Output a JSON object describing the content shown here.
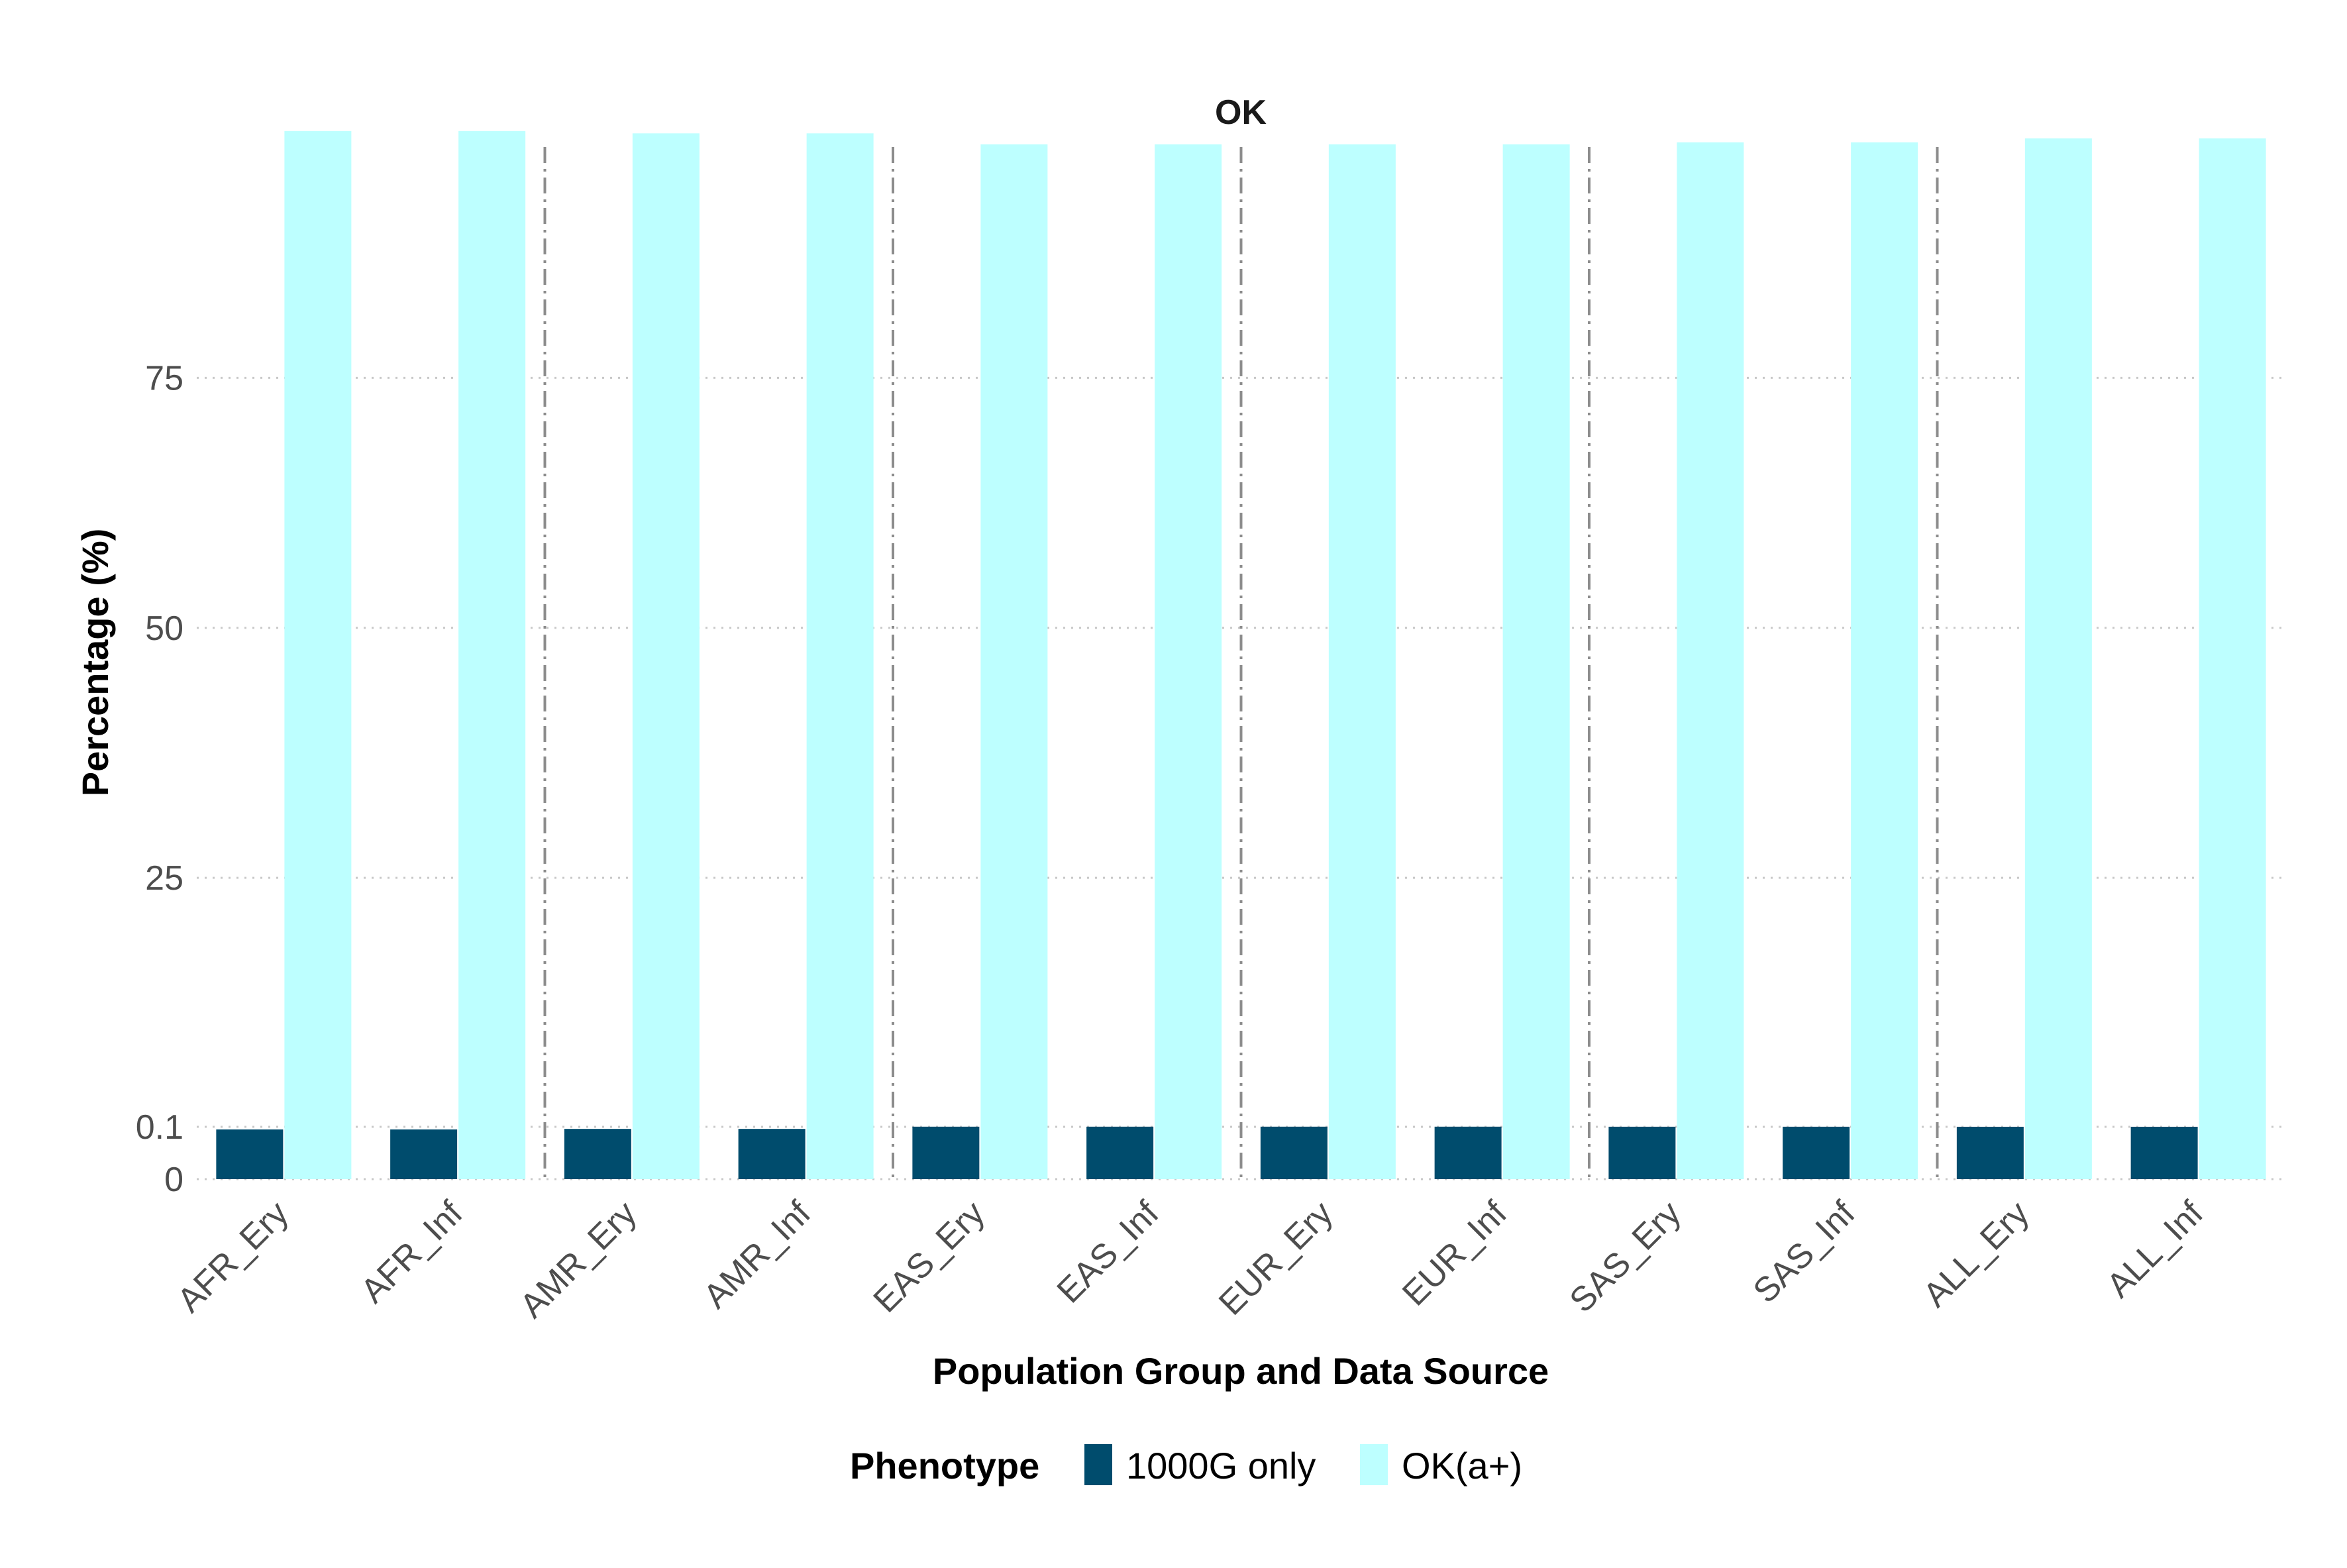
{
  "chart_data": {
    "type": "bar",
    "title": "OK",
    "xlabel": "Population Group and Data Source",
    "ylabel": "Percentage (%)",
    "categories": [
      "AFR_Ery",
      "AFR_Inf",
      "AMR_Ery",
      "AMR_Inf",
      "EAS_Ery",
      "EAS_Inf",
      "EUR_Ery",
      "EUR_Inf",
      "SAS_Ery",
      "SAS_Inf",
      "ALL_Ery",
      "ALL_Inf"
    ],
    "y_ticks": [
      0,
      0.1,
      25,
      50,
      75
    ],
    "y_tick_labels": [
      "0",
      "0.1",
      "25",
      "50",
      "75"
    ],
    "y_scale": "piecewise: 0 to 0.1 expanded, linear above 0.1",
    "ylim": [
      0,
      100
    ],
    "grid": "horizontal dotted at y ticks",
    "group_separators": "dash-dot vertical lines between population groups",
    "legend": {
      "title": "Phenotype",
      "position": "bottom"
    },
    "series": [
      {
        "name": "1000G only",
        "color": "#004c6d",
        "values": [
          0.095,
          0.095,
          0.096,
          0.096,
          0.112,
          0.112,
          0.113,
          0.113,
          0.108,
          0.108,
          0.104,
          0.104
        ]
      },
      {
        "name": "OK(a+)",
        "color": "#bdffff",
        "values": [
          99.68,
          99.68,
          99.45,
          99.45,
          98.35,
          98.35,
          98.35,
          98.35,
          98.55,
          98.55,
          98.95,
          98.95
        ]
      }
    ]
  }
}
